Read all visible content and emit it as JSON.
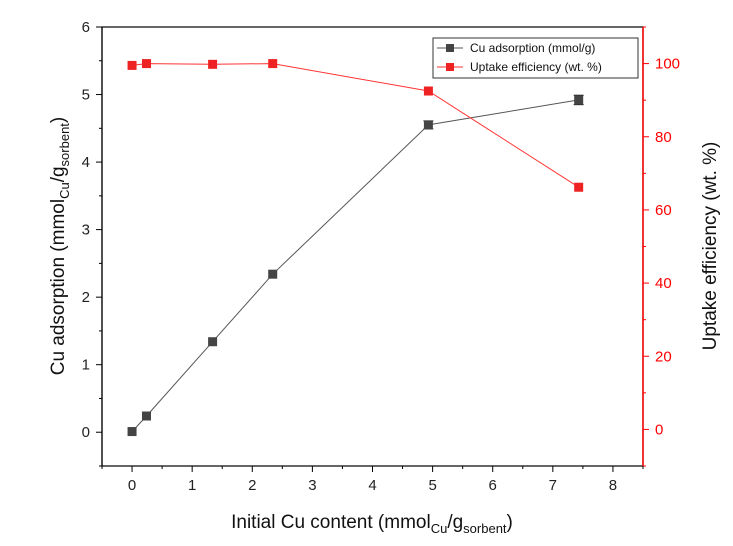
{
  "chart_data": {
    "type": "line",
    "x": [
      0,
      0.24,
      1.34,
      2.34,
      4.93,
      7.43
    ],
    "xlim": [
      -0.5,
      8.5
    ],
    "xticks": [
      0,
      1,
      2,
      3,
      4,
      5,
      6,
      7,
      8
    ],
    "xlabel": {
      "main": "Initial Cu content (mmol",
      "sub1": "Cu",
      "mid": "/g",
      "sub2": "sorbent",
      "end": ")"
    },
    "y_left": {
      "lim": [
        -0.5,
        6
      ],
      "ticks": [
        0,
        1,
        2,
        3,
        4,
        5,
        6
      ],
      "label": {
        "main": "Cu adsorption (mmol",
        "sub1": "Cu",
        "mid": "/g",
        "sub2": "sorbent",
        "end": ")"
      },
      "color": "#000000"
    },
    "y_right": {
      "lim": [
        -10,
        110
      ],
      "ticks": [
        0,
        20,
        40,
        60,
        80,
        100
      ],
      "label": "Uptake efficiency (wt. %)",
      "color": "#ff0000"
    },
    "series": [
      {
        "name": "Cu adsorption (mmol/g)",
        "axis": "left",
        "color": "#444444",
        "line_color": "#555555",
        "marker": "square",
        "values": [
          0.01,
          0.24,
          1.34,
          2.34,
          4.55,
          4.92
        ],
        "error": [
          0,
          0,
          0,
          0,
          0.06,
          0.07
        ]
      },
      {
        "name": "Uptake efficiency (wt. %)",
        "axis": "right",
        "color": "#ee2222",
        "line_color": "#ff3333",
        "marker": "square",
        "values": [
          99.5,
          100,
          99.8,
          100,
          92.5,
          66.2
        ],
        "error": [
          0,
          0,
          0,
          0,
          0,
          0
        ]
      }
    ],
    "legend_position": "top-right"
  }
}
